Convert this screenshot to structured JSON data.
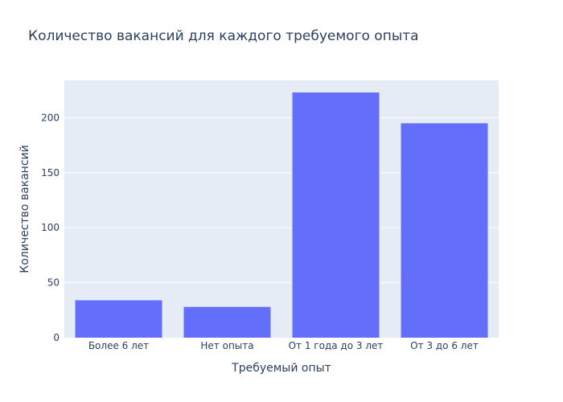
{
  "chart_data": {
    "type": "bar",
    "title": "Количество вакансий для каждого требуемого опыта",
    "xlabel": "Требуемый опыт",
    "ylabel": "Количество вакансий",
    "categories": [
      "Более 6 лет",
      "Нет опыта",
      "От 1 года до 3 лет",
      "От 3 до 6 лет"
    ],
    "values": [
      34,
      28,
      223,
      195
    ],
    "ylim": [
      0,
      234
    ],
    "yticks": [
      0,
      50,
      100,
      150,
      200
    ],
    "grid": true,
    "colors": {
      "bar": "#636efa",
      "plot_bg": "#e5ecf6",
      "grid": "#ffffff",
      "text": "#2a3f5f",
      "paper_bg": "#ffffff"
    }
  }
}
